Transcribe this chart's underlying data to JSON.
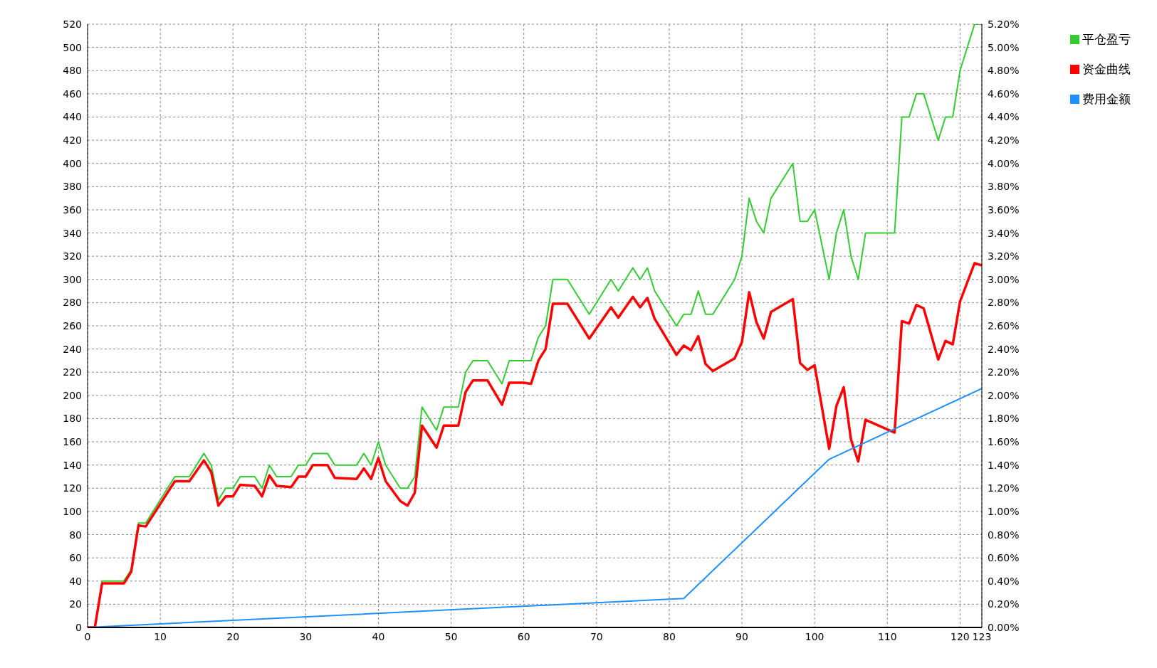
{
  "chart_data": {
    "type": "line",
    "xlim": [
      0,
      123
    ],
    "xticks": [
      0,
      10,
      20,
      30,
      40,
      50,
      60,
      70,
      80,
      90,
      100,
      110,
      120,
      123
    ],
    "ylim": [
      0,
      520
    ],
    "yticks": [
      0,
      20,
      40,
      60,
      80,
      100,
      120,
      140,
      160,
      180,
      200,
      220,
      240,
      260,
      280,
      300,
      320,
      340,
      360,
      380,
      400,
      420,
      440,
      460,
      480,
      500,
      520
    ],
    "y2lim": [
      0,
      5.2
    ],
    "y2ticks": [
      {
        "value": 0,
        "label": "0.00%"
      },
      {
        "value": 0.2,
        "label": "0.20%"
      },
      {
        "value": 0.4,
        "label": "0.40%"
      },
      {
        "value": 0.6,
        "label": "0.60%"
      },
      {
        "value": 0.8,
        "label": "0.80%"
      },
      {
        "value": 1.0,
        "label": "1.00%"
      },
      {
        "value": 1.2,
        "label": "1.20%"
      },
      {
        "value": 1.4,
        "label": "1.40%"
      },
      {
        "value": 1.6,
        "label": "1.60%"
      },
      {
        "value": 1.8,
        "label": "1.80%"
      },
      {
        "value": 2.0,
        "label": "2.00%"
      },
      {
        "value": 2.2,
        "label": "2.20%"
      },
      {
        "value": 2.4,
        "label": "2.40%"
      },
      {
        "value": 2.6,
        "label": "2.60%"
      },
      {
        "value": 2.8,
        "label": "2.80%"
      },
      {
        "value": 3.0,
        "label": "3.00%"
      },
      {
        "value": 3.2,
        "label": "3.20%"
      },
      {
        "value": 3.4,
        "label": "3.40%"
      },
      {
        "value": 3.6,
        "label": "3.60%"
      },
      {
        "value": 3.8,
        "label": "3.80%"
      },
      {
        "value": 4.0,
        "label": "4.00%"
      },
      {
        "value": 4.2,
        "label": "4.20%"
      },
      {
        "value": 4.4,
        "label": "4.40%"
      },
      {
        "value": 4.6,
        "label": "4.60%"
      },
      {
        "value": 4.8,
        "label": "4.80%"
      },
      {
        "value": 5.0,
        "label": "5.00%"
      },
      {
        "value": 5.2,
        "label": "5.20%"
      }
    ],
    "grid": true,
    "legend": "top right",
    "marker": "none",
    "series": [
      {
        "name": "平仓盈亏",
        "color": "#33cc33",
        "x": [
          0,
          1,
          2,
          5,
          6,
          7,
          8,
          12,
          14,
          16,
          17,
          18,
          19,
          20,
          21,
          23,
          24,
          25,
          26,
          28,
          29,
          30,
          31,
          33,
          34,
          37,
          38,
          39,
          40,
          41,
          43,
          44,
          45,
          46,
          48,
          49,
          51,
          52,
          53,
          55,
          57,
          58,
          61,
          62,
          63,
          64,
          66,
          69,
          72,
          73,
          75,
          76,
          77,
          78,
          81,
          82,
          83,
          84,
          85,
          86,
          89,
          90,
          91,
          92,
          93,
          94,
          97,
          98,
          99,
          100,
          102,
          103,
          104,
          105,
          106,
          107,
          111,
          112,
          113,
          114,
          115,
          117,
          118,
          119,
          120,
          122,
          123
        ],
        "values": [
          0,
          0,
          40,
          40,
          50,
          90,
          90,
          130,
          130,
          150,
          140,
          110,
          120,
          120,
          130,
          130,
          120,
          140,
          130,
          130,
          140,
          140,
          150,
          150,
          140,
          140,
          150,
          140,
          160,
          140,
          120,
          120,
          130,
          190,
          170,
          190,
          190,
          220,
          230,
          230,
          210,
          230,
          230,
          250,
          260,
          300,
          300,
          270,
          300,
          290,
          310,
          300,
          310,
          290,
          260,
          270,
          270,
          290,
          270,
          270,
          300,
          320,
          370,
          350,
          340,
          370,
          400,
          350,
          350,
          360,
          300,
          340,
          360,
          320,
          300,
          340,
          340,
          440,
          440,
          460,
          460,
          420,
          440,
          440,
          480,
          520,
          520
        ]
      },
      {
        "name": "资金曲线",
        "color": "#ff0000",
        "x": [
          0,
          1,
          2,
          5,
          6,
          7,
          8,
          12,
          14,
          16,
          17,
          18,
          19,
          20,
          21,
          23,
          24,
          25,
          26,
          28,
          29,
          30,
          31,
          33,
          34,
          37,
          38,
          39,
          40,
          41,
          43,
          44,
          45,
          46,
          48,
          49,
          51,
          52,
          53,
          55,
          57,
          58,
          60,
          61,
          62,
          63,
          64,
          66,
          69,
          72,
          73,
          75,
          76,
          77,
          78,
          81,
          82,
          83,
          84,
          85,
          86,
          89,
          90,
          91,
          92,
          93,
          94,
          97,
          98,
          99,
          100,
          102,
          103,
          104,
          105,
          106,
          107,
          111,
          112,
          113,
          114,
          115,
          117,
          118,
          119,
          120,
          122,
          123
        ],
        "values": [
          0,
          0,
          38,
          38,
          48,
          88,
          87,
          126,
          126,
          144,
          134,
          105,
          113,
          113,
          123,
          122,
          113,
          131,
          122,
          121,
          130,
          130,
          140,
          140,
          129,
          128,
          137,
          128,
          146,
          126,
          109,
          105,
          116,
          174,
          155,
          174,
          174,
          203,
          213,
          213,
          192,
          211,
          211,
          210,
          230,
          240,
          279,
          279,
          249,
          276,
          267,
          285,
          276,
          284,
          266,
          235,
          243,
          239,
          251,
          227,
          221,
          232,
          246,
          289,
          263,
          249,
          272,
          283,
          228,
          222,
          226,
          154,
          191,
          207,
          162,
          143,
          179,
          168,
          264,
          262,
          278,
          275,
          231,
          247,
          244,
          281,
          314,
          312
        ]
      },
      {
        "name": "费用金额",
        "color": "#1e90ff",
        "x": [
          0,
          82,
          102,
          123
        ],
        "values": [
          0,
          25,
          145,
          206
        ]
      }
    ]
  }
}
